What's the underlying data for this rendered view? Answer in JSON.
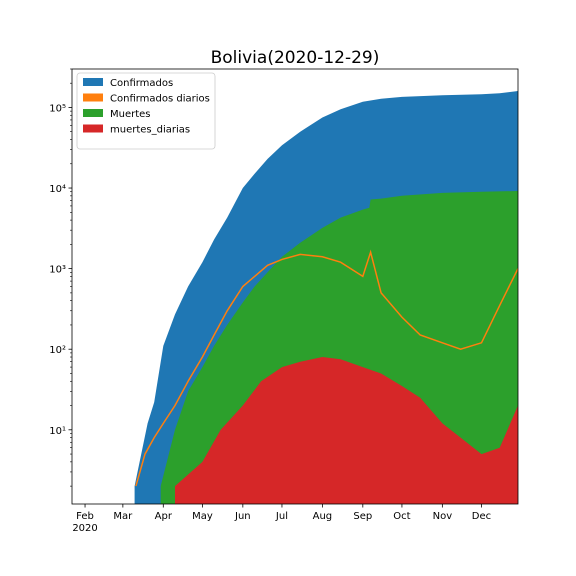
{
  "chart_data": {
    "type": "area",
    "title": "Bolivia(2020-12-29)",
    "xlabel": "",
    "ylabel": "",
    "yscale": "log",
    "ylim": [
      1.2,
      300000
    ],
    "xlim": [
      "2020-01-22",
      "2020-12-29"
    ],
    "grid": false,
    "legend_position": "top-left",
    "x_ticks": [
      {
        "date": "2020-02-01",
        "label": "Feb",
        "sublabel": "2020"
      },
      {
        "date": "2020-03-01",
        "label": "Mar",
        "sublabel": ""
      },
      {
        "date": "2020-04-01",
        "label": "Apr",
        "sublabel": ""
      },
      {
        "date": "2020-05-01",
        "label": "May",
        "sublabel": ""
      },
      {
        "date": "2020-06-01",
        "label": "Jun",
        "sublabel": ""
      },
      {
        "date": "2020-07-01",
        "label": "Jul",
        "sublabel": ""
      },
      {
        "date": "2020-08-01",
        "label": "Aug",
        "sublabel": ""
      },
      {
        "date": "2020-09-01",
        "label": "Sep",
        "sublabel": ""
      },
      {
        "date": "2020-10-01",
        "label": "Oct",
        "sublabel": ""
      },
      {
        "date": "2020-11-01",
        "label": "Nov",
        "sublabel": ""
      },
      {
        "date": "2020-12-01",
        "label": "Dec",
        "sublabel": ""
      }
    ],
    "y_ticks": [
      {
        "value": 10,
        "label": "10¹"
      },
      {
        "value": 100,
        "label": "10²"
      },
      {
        "value": 1000,
        "label": "10³"
      },
      {
        "value": 10000,
        "label": "10⁴"
      },
      {
        "value": 100000,
        "label": "10⁵"
      }
    ],
    "series": [
      {
        "name": "Confirmados",
        "style": "area",
        "color": "#1f77b4",
        "points": [
          [
            "2020-03-10",
            2
          ],
          [
            "2020-03-20",
            12
          ],
          [
            "2020-03-25",
            22
          ],
          [
            "2020-04-01",
            110
          ],
          [
            "2020-04-10",
            270
          ],
          [
            "2020-04-20",
            600
          ],
          [
            "2020-05-01",
            1200
          ],
          [
            "2020-05-10",
            2300
          ],
          [
            "2020-05-20",
            4300
          ],
          [
            "2020-06-01",
            10000
          ],
          [
            "2020-06-10",
            15000
          ],
          [
            "2020-06-20",
            23000
          ],
          [
            "2020-07-01",
            34000
          ],
          [
            "2020-07-15",
            50000
          ],
          [
            "2020-08-01",
            75000
          ],
          [
            "2020-08-15",
            95000
          ],
          [
            "2020-09-01",
            118000
          ],
          [
            "2020-09-15",
            128000
          ],
          [
            "2020-10-01",
            135000
          ],
          [
            "2020-11-01",
            142000
          ],
          [
            "2020-12-01",
            146000
          ],
          [
            "2020-12-15",
            150000
          ],
          [
            "2020-12-29",
            160000
          ]
        ]
      },
      {
        "name": "Confirmados diarios",
        "style": "line",
        "color": "#ff7f0e",
        "points": [
          [
            "2020-03-11",
            2
          ],
          [
            "2020-03-18",
            5
          ],
          [
            "2020-03-25",
            8
          ],
          [
            "2020-04-01",
            12
          ],
          [
            "2020-04-10",
            20
          ],
          [
            "2020-04-20",
            40
          ],
          [
            "2020-05-01",
            80
          ],
          [
            "2020-05-10",
            150
          ],
          [
            "2020-05-20",
            300
          ],
          [
            "2020-06-01",
            600
          ],
          [
            "2020-06-10",
            800
          ],
          [
            "2020-06-20",
            1100
          ],
          [
            "2020-07-01",
            1300
          ],
          [
            "2020-07-15",
            1500
          ],
          [
            "2020-08-01",
            1400
          ],
          [
            "2020-08-15",
            1200
          ],
          [
            "2020-09-01",
            800
          ],
          [
            "2020-09-07",
            1600
          ],
          [
            "2020-09-15",
            500
          ],
          [
            "2020-10-01",
            250
          ],
          [
            "2020-10-15",
            150
          ],
          [
            "2020-11-01",
            120
          ],
          [
            "2020-11-15",
            100
          ],
          [
            "2020-12-01",
            120
          ],
          [
            "2020-12-15",
            350
          ],
          [
            "2020-12-29",
            1000
          ]
        ]
      },
      {
        "name": "Muertes",
        "style": "area",
        "color": "#2ca02c",
        "points": [
          [
            "2020-03-30",
            2
          ],
          [
            "2020-04-10",
            10
          ],
          [
            "2020-04-20",
            30
          ],
          [
            "2020-05-01",
            60
          ],
          [
            "2020-05-10",
            110
          ],
          [
            "2020-05-20",
            200
          ],
          [
            "2020-06-01",
            380
          ],
          [
            "2020-06-10",
            600
          ],
          [
            "2020-06-20",
            900
          ],
          [
            "2020-07-01",
            1400
          ],
          [
            "2020-07-15",
            2100
          ],
          [
            "2020-08-01",
            3200
          ],
          [
            "2020-08-15",
            4300
          ],
          [
            "2020-09-01",
            5400
          ],
          [
            "2020-09-06",
            5700
          ],
          [
            "2020-09-07",
            7200
          ],
          [
            "2020-09-15",
            7400
          ],
          [
            "2020-10-01",
            8000
          ],
          [
            "2020-11-01",
            8700
          ],
          [
            "2020-12-01",
            9000
          ],
          [
            "2020-12-29",
            9200
          ]
        ]
      },
      {
        "name": "muertes_diarias",
        "style": "area",
        "color": "#d62728",
        "points": [
          [
            "2020-04-10",
            2
          ],
          [
            "2020-05-01",
            4
          ],
          [
            "2020-05-15",
            10
          ],
          [
            "2020-06-01",
            20
          ],
          [
            "2020-06-15",
            40
          ],
          [
            "2020-07-01",
            60
          ],
          [
            "2020-07-15",
            70
          ],
          [
            "2020-08-01",
            80
          ],
          [
            "2020-08-15",
            75
          ],
          [
            "2020-09-01",
            60
          ],
          [
            "2020-09-15",
            50
          ],
          [
            "2020-10-01",
            35
          ],
          [
            "2020-10-15",
            25
          ],
          [
            "2020-11-01",
            12
          ],
          [
            "2020-11-15",
            8
          ],
          [
            "2020-12-01",
            5
          ],
          [
            "2020-12-15",
            6
          ],
          [
            "2020-12-29",
            20
          ]
        ]
      }
    ]
  }
}
